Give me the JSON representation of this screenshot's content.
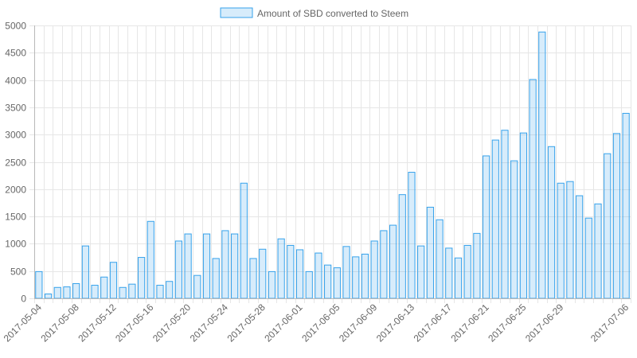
{
  "chart_data": {
    "type": "bar",
    "legend": {
      "label": "Amount of SBD converted to Steem",
      "position": "top"
    },
    "colors": {
      "bar_fill": "rgba(54,162,235,0.2)",
      "bar_border": "#36a2eb",
      "grid": "#e6e6e6",
      "text": "#666666"
    },
    "grid": true,
    "ylim": [
      0,
      5000
    ],
    "yticks": [
      0,
      500,
      1000,
      1500,
      2000,
      2500,
      3000,
      3500,
      4000,
      4500,
      5000
    ],
    "xtick_labels": [
      "2017-05-04",
      "2017-05-08",
      "2017-05-12",
      "2017-05-16",
      "2017-05-20",
      "2017-05-24",
      "2017-05-28",
      "2017-06-01",
      "2017-06-05",
      "2017-06-09",
      "2017-06-13",
      "2017-06-17",
      "2017-06-21",
      "2017-06-25",
      "2017-06-29",
      "2017-07-06"
    ],
    "categories": [
      "2017-05-04",
      "2017-05-05",
      "2017-05-06",
      "2017-05-07",
      "2017-05-08",
      "2017-05-09",
      "2017-05-10",
      "2017-05-11",
      "2017-05-12",
      "2017-05-13",
      "2017-05-14",
      "2017-05-15",
      "2017-05-16",
      "2017-05-17",
      "2017-05-18",
      "2017-05-19",
      "2017-05-20",
      "2017-05-21",
      "2017-05-22",
      "2017-05-23",
      "2017-05-24",
      "2017-05-25",
      "2017-05-26",
      "2017-05-27",
      "2017-05-28",
      "2017-05-29",
      "2017-05-30",
      "2017-05-31",
      "2017-06-01",
      "2017-06-02",
      "2017-06-03",
      "2017-06-04",
      "2017-06-05",
      "2017-06-06",
      "2017-06-07",
      "2017-06-08",
      "2017-06-09",
      "2017-06-10",
      "2017-06-11",
      "2017-06-12",
      "2017-06-13",
      "2017-06-14",
      "2017-06-15",
      "2017-06-16",
      "2017-06-17",
      "2017-06-18",
      "2017-06-19",
      "2017-06-20",
      "2017-06-21",
      "2017-06-22",
      "2017-06-23",
      "2017-06-24",
      "2017-06-25",
      "2017-06-26",
      "2017-06-27",
      "2017-06-28",
      "2017-06-29",
      "2017-06-30",
      "2017-07-01",
      "2017-07-02",
      "2017-07-03",
      "2017-07-04",
      "2017-07-05",
      "2017-07-06"
    ],
    "values": [
      490,
      80,
      200,
      210,
      270,
      960,
      240,
      390,
      660,
      200,
      260,
      750,
      1410,
      240,
      310,
      1050,
      1180,
      420,
      1180,
      730,
      1240,
      1180,
      2110,
      730,
      900,
      490,
      1090,
      970,
      890,
      490,
      830,
      610,
      560,
      950,
      760,
      810,
      1050,
      1240,
      1340,
      1900,
      2310,
      960,
      1670,
      1440,
      920,
      740,
      970,
      1190,
      2610,
      2900,
      3080,
      2520,
      3030,
      4010,
      4880,
      2780,
      2110,
      2140,
      1880,
      1470,
      1730,
      2650,
      3020,
      3390
    ]
  }
}
